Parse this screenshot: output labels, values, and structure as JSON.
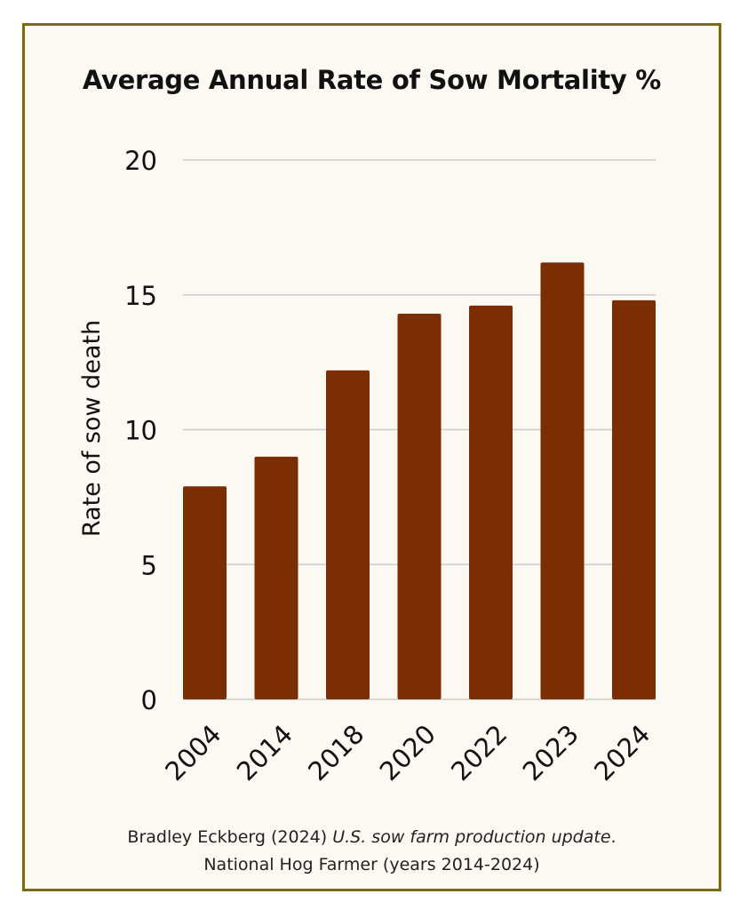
{
  "chart_data": {
    "type": "bar",
    "title": "Average Annual Rate of Sow Mortality %",
    "xlabel": "",
    "ylabel": "Rate of sow death",
    "categories": [
      "2004",
      "2014",
      "2018",
      "2020",
      "2022",
      "2023",
      "2024"
    ],
    "values": [
      7.9,
      9.0,
      12.2,
      14.3,
      14.6,
      16.2,
      14.8
    ],
    "ylim": [
      0,
      20
    ],
    "yticks": [
      "0",
      "5",
      "10",
      "15",
      "20"
    ],
    "grid": true,
    "bar_color": "#7b2e03",
    "grid_color": "#cccccc",
    "background_color": "#fcf9f3",
    "border_color": "#7d6a0e"
  },
  "source": {
    "line1_prefix": "Bradley Eckberg (2024) ",
    "line1_italic": "U.S. sow farm production update",
    "line1_suffix": ".",
    "line2": "National Hog Farmer (years 2014-2024)"
  }
}
